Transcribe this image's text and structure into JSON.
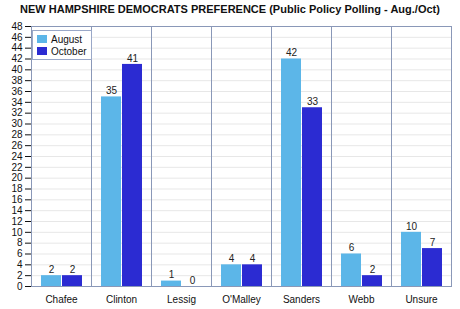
{
  "chart_data": {
    "type": "bar",
    "title": "NEW HAMPSHIRE DEMOCRATS PREFERENCE (Public Policy Polling - Aug./Oct)",
    "categories": [
      "Chafee",
      "Clinton",
      "Lessig",
      "O'Malley",
      "Sanders",
      "Webb",
      "Unsure"
    ],
    "series": [
      {
        "name": "August",
        "color": "#5cb6e8",
        "values": [
          2,
          35,
          1,
          4,
          42,
          6,
          10
        ]
      },
      {
        "name": "October",
        "color": "#2b2bd2",
        "values": [
          2,
          41,
          0,
          4,
          33,
          2,
          7
        ]
      }
    ],
    "ylim": [
      0,
      48
    ],
    "yticks": [
      0,
      2,
      4,
      6,
      8,
      10,
      12,
      14,
      16,
      18,
      20,
      22,
      24,
      26,
      28,
      30,
      32,
      34,
      36,
      38,
      40,
      42,
      44,
      46,
      48
    ],
    "grid": true,
    "legend": "top-left",
    "data_labels": true
  }
}
